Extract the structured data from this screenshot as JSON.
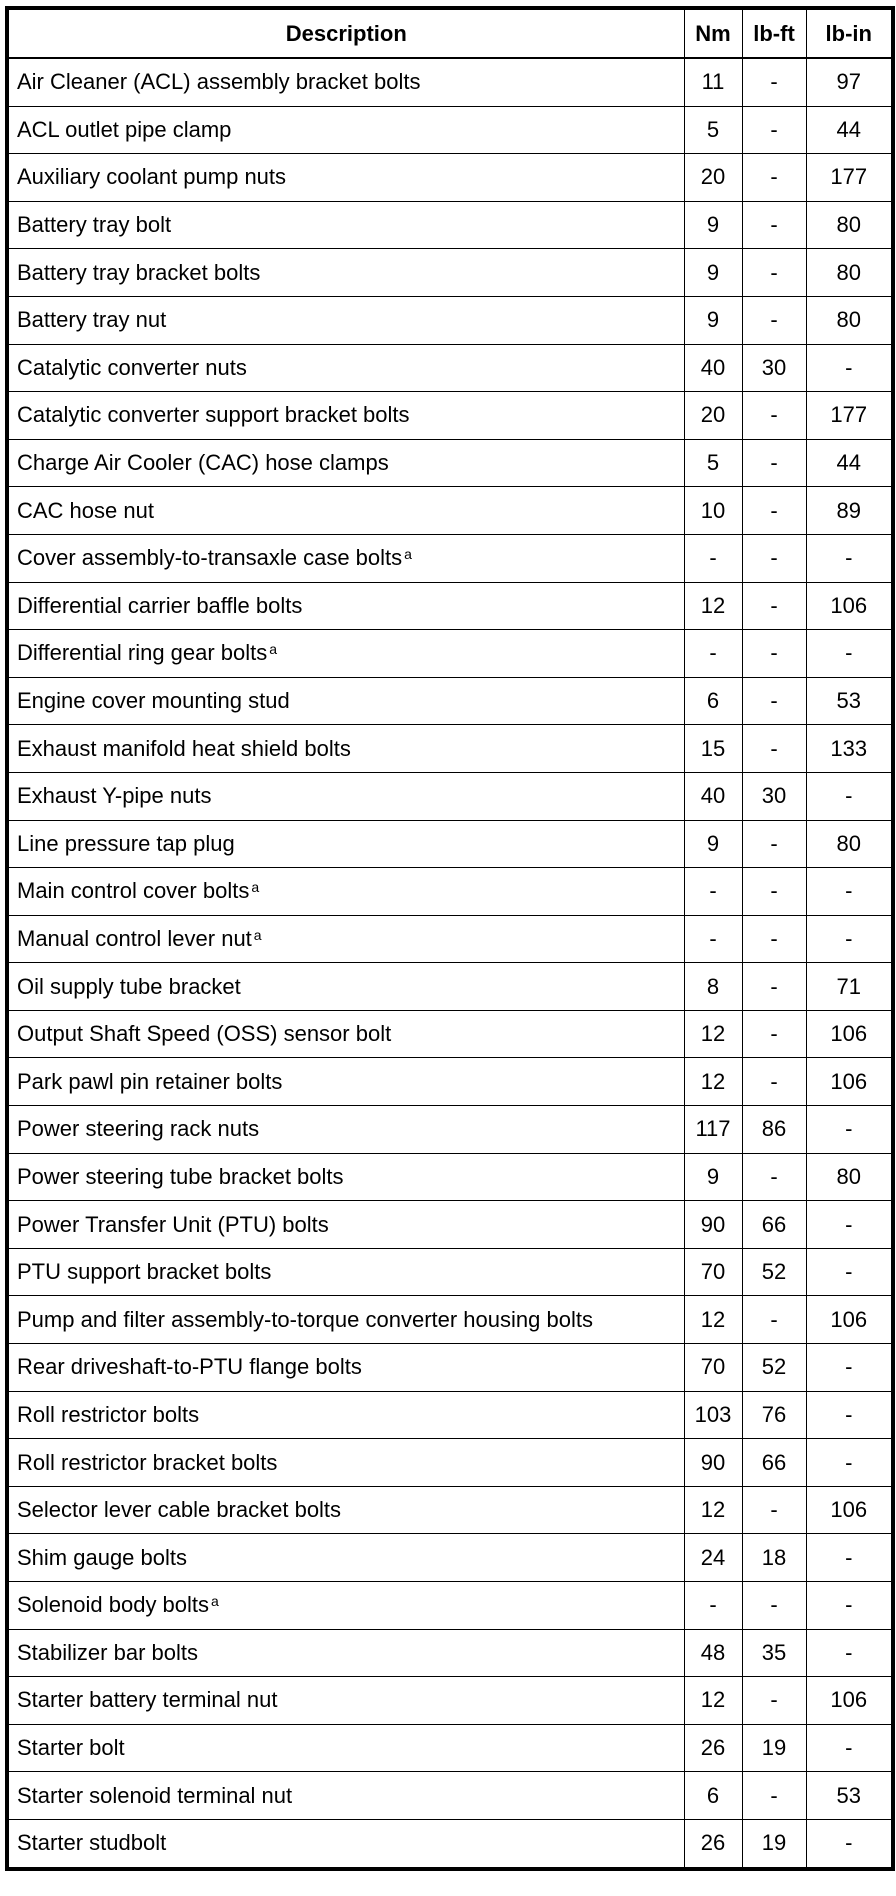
{
  "headers": [
    "Description",
    "Nm",
    "lb-ft",
    "lb-in"
  ],
  "rows": [
    {
      "description": "Air Cleaner (ACL) assembly bracket bolts",
      "note": "",
      "nm": "11",
      "lbft": "-",
      "lbin": "97"
    },
    {
      "description": "ACL outlet pipe clamp",
      "note": "",
      "nm": "5",
      "lbft": "-",
      "lbin": "44"
    },
    {
      "description": "Auxiliary coolant pump nuts",
      "note": "",
      "nm": "20",
      "lbft": "-",
      "lbin": "177"
    },
    {
      "description": "Battery tray bolt",
      "note": "",
      "nm": "9",
      "lbft": "-",
      "lbin": "80"
    },
    {
      "description": "Battery tray bracket bolts",
      "note": "",
      "nm": "9",
      "lbft": "-",
      "lbin": "80"
    },
    {
      "description": "Battery tray nut",
      "note": "",
      "nm": "9",
      "lbft": "-",
      "lbin": "80"
    },
    {
      "description": "Catalytic converter nuts",
      "note": "",
      "nm": "40",
      "lbft": "30",
      "lbin": "-"
    },
    {
      "description": "Catalytic converter support bracket bolts",
      "note": "",
      "nm": "20",
      "lbft": "-",
      "lbin": "177"
    },
    {
      "description": "Charge Air Cooler (CAC) hose clamps",
      "note": "",
      "nm": "5",
      "lbft": "-",
      "lbin": "44"
    },
    {
      "description": "CAC hose nut",
      "note": "",
      "nm": "10",
      "lbft": "-",
      "lbin": "89"
    },
    {
      "description": "Cover assembly-to-transaxle case bolts",
      "note": "a",
      "nm": "-",
      "lbft": "-",
      "lbin": "-"
    },
    {
      "description": "Differential carrier baffle bolts",
      "note": "",
      "nm": "12",
      "lbft": "-",
      "lbin": "106"
    },
    {
      "description": "Differential ring gear bolts",
      "note": "a",
      "nm": "-",
      "lbft": "-",
      "lbin": "-"
    },
    {
      "description": "Engine cover mounting stud",
      "note": "",
      "nm": "6",
      "lbft": "-",
      "lbin": "53"
    },
    {
      "description": "Exhaust manifold heat shield bolts",
      "note": "",
      "nm": "15",
      "lbft": "-",
      "lbin": "133"
    },
    {
      "description": "Exhaust Y-pipe nuts",
      "note": "",
      "nm": "40",
      "lbft": "30",
      "lbin": "-"
    },
    {
      "description": "Line pressure tap plug",
      "note": "",
      "nm": "9",
      "lbft": "-",
      "lbin": "80"
    },
    {
      "description": "Main control cover bolts",
      "note": "a",
      "nm": "-",
      "lbft": "-",
      "lbin": "-"
    },
    {
      "description": "Manual control lever nut",
      "note": "a",
      "nm": "-",
      "lbft": "-",
      "lbin": "-"
    },
    {
      "description": "Oil supply tube bracket",
      "note": "",
      "nm": "8",
      "lbft": "-",
      "lbin": "71"
    },
    {
      "description": "Output Shaft Speed (OSS) sensor bolt",
      "note": "",
      "nm": "12",
      "lbft": "-",
      "lbin": "106"
    },
    {
      "description": "Park pawl pin retainer bolts",
      "note": "",
      "nm": "12",
      "lbft": "-",
      "lbin": "106"
    },
    {
      "description": "Power steering rack nuts",
      "note": "",
      "nm": "117",
      "lbft": "86",
      "lbin": "-"
    },
    {
      "description": "Power steering tube bracket bolts",
      "note": "",
      "nm": "9",
      "lbft": "-",
      "lbin": "80"
    },
    {
      "description": "Power Transfer Unit (PTU) bolts",
      "note": "",
      "nm": "90",
      "lbft": "66",
      "lbin": "-"
    },
    {
      "description": "PTU support bracket bolts",
      "note": "",
      "nm": "70",
      "lbft": "52",
      "lbin": "-"
    },
    {
      "description": "Pump and filter assembly-to-torque converter housing bolts",
      "note": "",
      "nm": "12",
      "lbft": "-",
      "lbin": "106"
    },
    {
      "description": "Rear driveshaft-to-PTU flange bolts",
      "note": "",
      "nm": "70",
      "lbft": "52",
      "lbin": "-"
    },
    {
      "description": "Roll restrictor bolts",
      "note": "",
      "nm": "103",
      "lbft": "76",
      "lbin": "-"
    },
    {
      "description": "Roll restrictor bracket bolts",
      "note": "",
      "nm": "90",
      "lbft": "66",
      "lbin": "-"
    },
    {
      "description": "Selector lever cable bracket bolts",
      "note": "",
      "nm": "12",
      "lbft": "-",
      "lbin": "106"
    },
    {
      "description": "Shim gauge bolts",
      "note": "",
      "nm": "24",
      "lbft": "18",
      "lbin": "-"
    },
    {
      "description": "Solenoid body bolts",
      "note": "a",
      "nm": "-",
      "lbft": "-",
      "lbin": "-"
    },
    {
      "description": "Stabilizer bar bolts",
      "note": "",
      "nm": "48",
      "lbft": "35",
      "lbin": "-"
    },
    {
      "description": "Starter battery terminal nut",
      "note": "",
      "nm": "12",
      "lbft": "-",
      "lbin": "106"
    },
    {
      "description": "Starter bolt",
      "note": "",
      "nm": "26",
      "lbft": "19",
      "lbin": "-"
    },
    {
      "description": "Starter solenoid terminal nut",
      "note": "",
      "nm": "6",
      "lbft": "-",
      "lbin": "53"
    },
    {
      "description": "Starter studbolt",
      "note": "",
      "nm": "26",
      "lbft": "19",
      "lbin": "-"
    }
  ]
}
